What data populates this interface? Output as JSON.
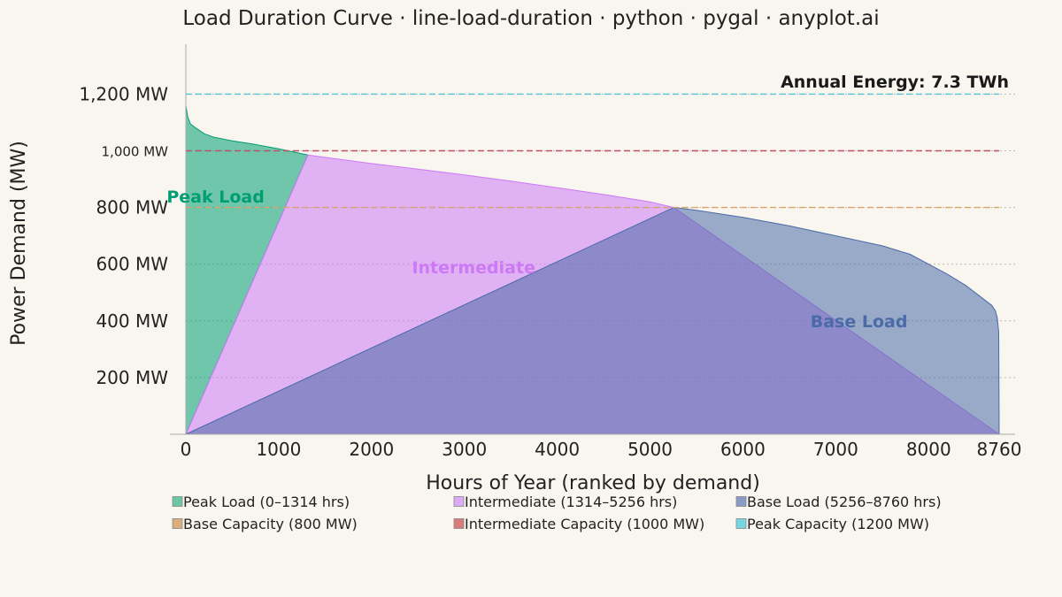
{
  "chart_data": {
    "type": "area",
    "title": "Load Duration Curve · line-load-duration · python · pygal · anyplot.ai",
    "xlabel": "Hours of Year (ranked by demand)",
    "ylabel": "Power Demand (MW)",
    "xlim": [
      0,
      8760
    ],
    "ylim": [
      0,
      1300
    ],
    "x_ticks": [
      {
        "value": 0,
        "label": "0"
      },
      {
        "value": 1000,
        "label": "1000"
      },
      {
        "value": 2000,
        "label": "2000"
      },
      {
        "value": 3000,
        "label": "3000"
      },
      {
        "value": 4000,
        "label": "4000"
      },
      {
        "value": 5000,
        "label": "5000"
      },
      {
        "value": 6000,
        "label": "6000"
      },
      {
        "value": 7000,
        "label": "7000"
      },
      {
        "value": 8000,
        "label": "8000"
      },
      {
        "value": 8760,
        "label": "8760"
      }
    ],
    "y_ticks": [
      {
        "value": 200,
        "label": "200 MW",
        "small": false
      },
      {
        "value": 400,
        "label": "400 MW",
        "small": false
      },
      {
        "value": 600,
        "label": "600 MW",
        "small": false
      },
      {
        "value": 800,
        "label": "800 MW",
        "small": false
      },
      {
        "value": 1000,
        "label": "1,000 MW",
        "small": true
      },
      {
        "value": 1200,
        "label": "1,200 MW",
        "small": false
      }
    ],
    "grid": true,
    "legend_position": "bottom",
    "series": [
      {
        "name": "Peak Load (0–1314 hrs)",
        "color": "#009e73",
        "fill_opacity": 0.55,
        "label": "Peak Load",
        "label_color": "#009e73",
        "label_pos": [
          320,
          840
        ],
        "points": [
          [
            0,
            0
          ],
          [
            0,
            1160
          ],
          [
            20,
            1120
          ],
          [
            50,
            1095
          ],
          [
            100,
            1082
          ],
          [
            200,
            1060
          ],
          [
            300,
            1048
          ],
          [
            500,
            1035
          ],
          [
            700,
            1025
          ],
          [
            1000,
            1007
          ],
          [
            1314,
            985
          ],
          [
            0,
            0
          ]
        ]
      },
      {
        "name": "Intermediate (1314–5256 hrs)",
        "color": "#cc79f6",
        "fill_opacity": 0.55,
        "label": "Intermediate",
        "label_color": "#cc79f6",
        "label_pos": [
          3100,
          590
        ],
        "points": [
          [
            0,
            0
          ],
          [
            1314,
            985
          ],
          [
            2000,
            955
          ],
          [
            2500,
            935
          ],
          [
            3000,
            915
          ],
          [
            3500,
            893
          ],
          [
            4000,
            870
          ],
          [
            4500,
            846
          ],
          [
            5000,
            820
          ],
          [
            5256,
            800
          ],
          [
            8760,
            0
          ]
        ]
      },
      {
        "name": "Base Load (5256–8760 hrs)",
        "color": "#4a6aa8",
        "fill_opacity": 0.55,
        "label": "Base Load",
        "label_color": "#4a6aa8",
        "label_pos": [
          7250,
          400
        ],
        "points": [
          [
            0,
            0
          ],
          [
            5256,
            800
          ],
          [
            5500,
            790
          ],
          [
            6000,
            765
          ],
          [
            6500,
            735
          ],
          [
            7000,
            700
          ],
          [
            7500,
            665
          ],
          [
            7800,
            635
          ],
          [
            8000,
            600
          ],
          [
            8200,
            565
          ],
          [
            8400,
            525
          ],
          [
            8600,
            475
          ],
          [
            8680,
            455
          ],
          [
            8720,
            435
          ],
          [
            8740,
            410
          ],
          [
            8755,
            360
          ],
          [
            8760,
            0
          ]
        ]
      }
    ],
    "reference_lines": [
      {
        "name": "Base Capacity (800 MW)",
        "value": 800,
        "color": "#d9a46a"
      },
      {
        "name": "Intermediate Capacity (1000 MW)",
        "value": 1000,
        "color": "#c0506a"
      },
      {
        "name": "Peak Capacity (1200 MW)",
        "value": 1200,
        "color": "#56c4d8"
      }
    ],
    "legend_swatches": {
      "Peak Load (0–1314 hrs)": "#6cc6a6",
      "Intermediate (1314–5256 hrs)": "#dcaaf6",
      "Base Load (5256–8760 hrs)": "#8a9bc6",
      "Base Capacity (800 MW)": "#d9ae7c",
      "Intermediate Capacity (1000 MW)": "#d67c7c",
      "Peak Capacity (1200 MW)": "#78d6e2"
    },
    "annotation": {
      "text": "Annual Energy: 7.3 TWh"
    }
  }
}
